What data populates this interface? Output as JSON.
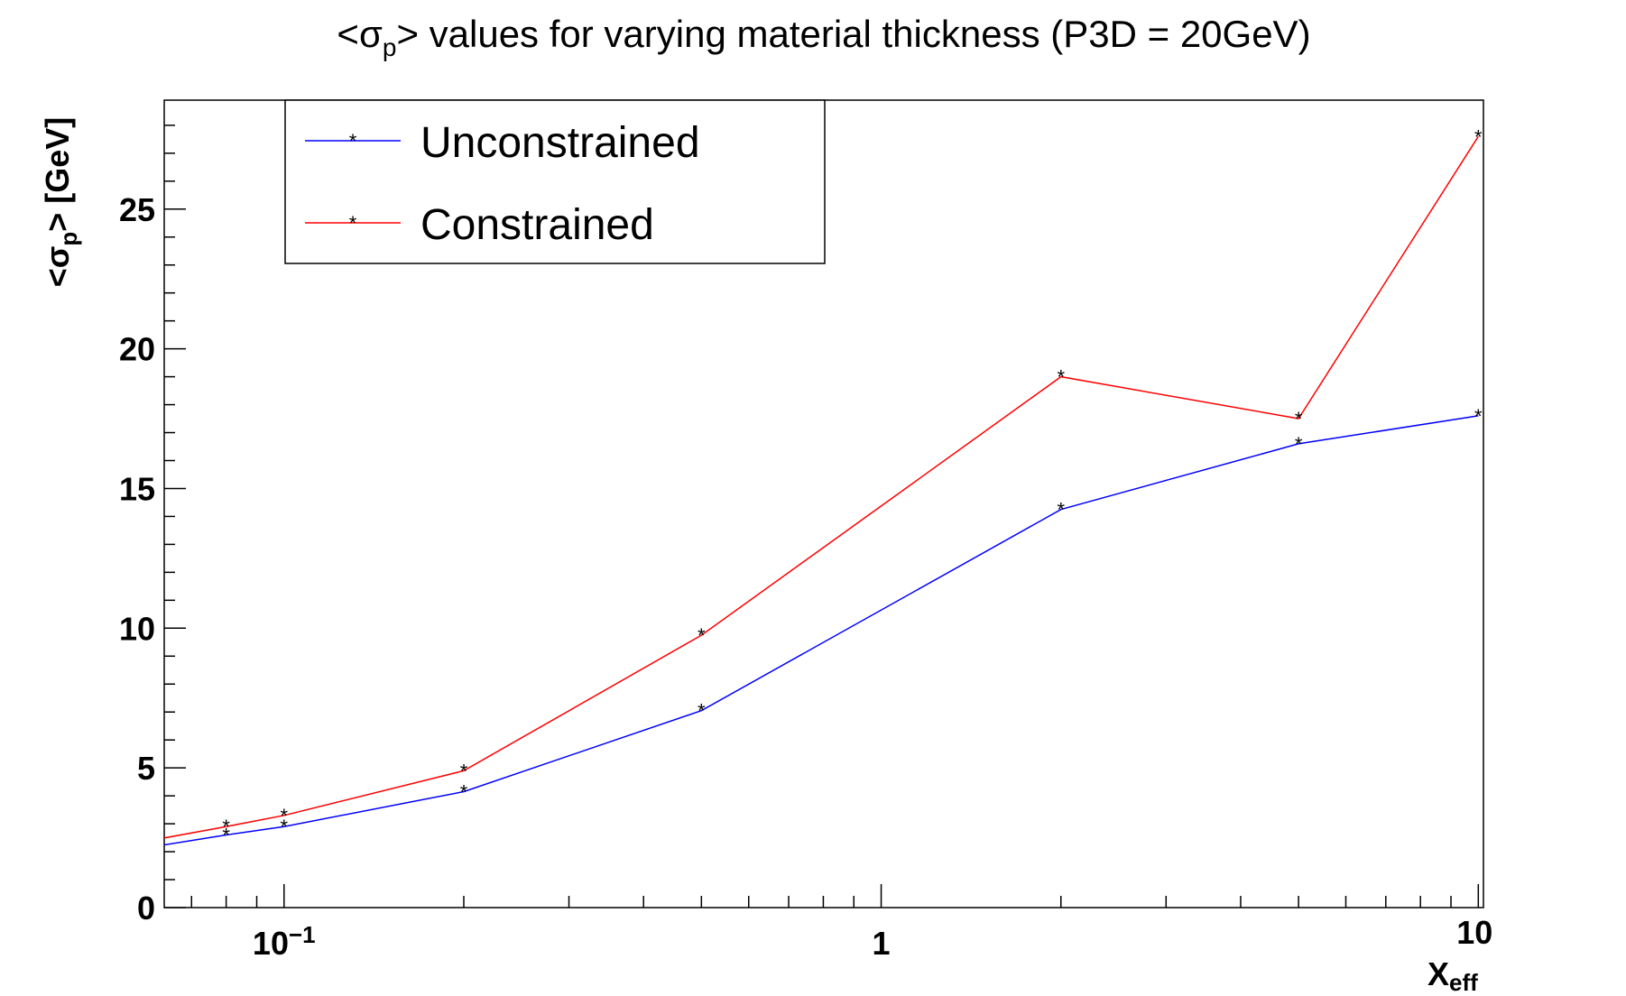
{
  "chart_data": {
    "type": "line",
    "title": {
      "prefix": "<σ",
      "sub": "p",
      "suffix": "> values for varying material thickness (P3D = 20GeV)"
    },
    "xlabel": {
      "main": "X",
      "sub": "eff"
    },
    "ylabel": {
      "prefix": "<σ",
      "sub": "p",
      "suffix": "> [GeV]"
    },
    "x_scale": "log",
    "xlim": [
      0.063,
      10.2
    ],
    "ylim": [
      0,
      28.9
    ],
    "yticks": [
      {
        "value": 0,
        "label": "0"
      },
      {
        "value": 5,
        "label": "5"
      },
      {
        "value": 10,
        "label": "10"
      },
      {
        "value": 15,
        "label": "15"
      },
      {
        "value": 20,
        "label": "20"
      },
      {
        "value": 25,
        "label": "25"
      }
    ],
    "xticks": [
      {
        "value": 0.1,
        "base": "10",
        "exp": "−1"
      },
      {
        "value": 1,
        "base": "1",
        "exp": ""
      },
      {
        "value": 10,
        "base": "",
        "exp": "10"
      }
    ],
    "grid": false,
    "legend_position": "top-left",
    "series": [
      {
        "name": "Unconstrained",
        "color": "#0000ff",
        "x": [
          0.05,
          0.08,
          0.1,
          0.2,
          0.5,
          2,
          5,
          10
        ],
        "y": [
          1.9,
          2.6,
          2.9,
          4.15,
          7.05,
          14.25,
          16.6,
          17.6
        ]
      },
      {
        "name": "Constrained",
        "color": "#ff0000",
        "x": [
          0.05,
          0.08,
          0.1,
          0.2,
          0.5,
          2,
          5,
          10
        ],
        "y": [
          2.1,
          2.9,
          3.3,
          4.9,
          9.75,
          19.0,
          17.5,
          27.6
        ]
      }
    ],
    "marker": "*"
  }
}
